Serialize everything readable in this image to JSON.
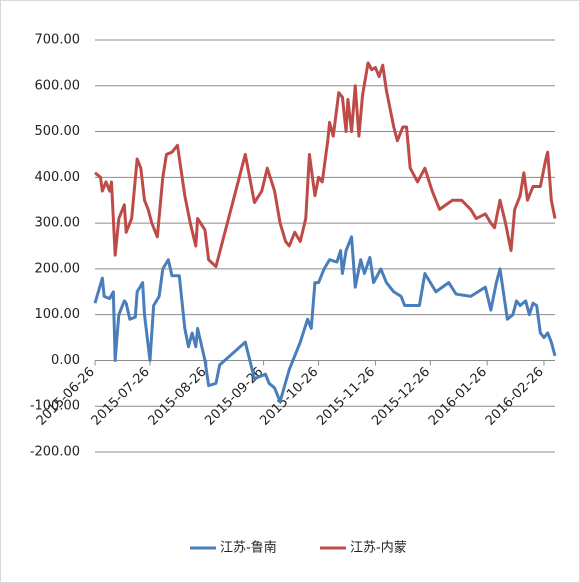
{
  "chart_data": {
    "type": "line",
    "xlim": [
      "2015-06-26",
      "2016-03-03"
    ],
    "xticks": [
      "2015-06-26",
      "2015-07-26",
      "2015-08-26",
      "2015-09-26",
      "2015-10-26",
      "2015-11-26",
      "2015-12-26",
      "2016-01-26",
      "2016-02-26"
    ],
    "ylim": [
      -200,
      700
    ],
    "yticks": [
      {
        "value": -200,
        "label": "-200.00"
      },
      {
        "value": -100,
        "label": "-100.00"
      },
      {
        "value": 0,
        "label": "0.00"
      },
      {
        "value": 100,
        "label": "100.00"
      },
      {
        "value": 200,
        "label": "200.00"
      },
      {
        "value": 300,
        "label": "300.00"
      },
      {
        "value": 400,
        "label": "400.00"
      },
      {
        "value": 500,
        "label": "500.00"
      },
      {
        "value": 600,
        "label": "600.00"
      },
      {
        "value": 700,
        "label": "700.00"
      }
    ],
    "grid": true,
    "legend": "bottom",
    "series": [
      {
        "name": "江苏-鲁南",
        "color": "#4a7ebb",
        "x": [
          "2015-06-26",
          "2015-06-30",
          "2015-07-01",
          "2015-07-04",
          "2015-07-06",
          "2015-07-07",
          "2015-07-09",
          "2015-07-12",
          "2015-07-13",
          "2015-07-15",
          "2015-07-18",
          "2015-07-19",
          "2015-07-22",
          "2015-07-23",
          "2015-07-26",
          "2015-07-28",
          "2015-07-31",
          "2015-08-02",
          "2015-08-05",
          "2015-08-07",
          "2015-08-11",
          "2015-08-14",
          "2015-08-16",
          "2015-08-18",
          "2015-08-20",
          "2015-08-21",
          "2015-08-25",
          "2015-08-27",
          "2015-08-31",
          "2015-09-02",
          "2015-09-16",
          "2015-09-21",
          "2015-09-27",
          "2015-09-29",
          "2015-10-02",
          "2015-10-05",
          "2015-10-10",
          "2015-10-16",
          "2015-10-20",
          "2015-10-22",
          "2015-10-24",
          "2015-10-26",
          "2015-10-29",
          "2015-11-01",
          "2015-11-05",
          "2015-11-07",
          "2015-11-08",
          "2015-11-10",
          "2015-11-13",
          "2015-11-15",
          "2015-11-18",
          "2015-11-20",
          "2015-11-23",
          "2015-11-25",
          "2015-11-29",
          "2015-12-02",
          "2015-12-06",
          "2015-12-10",
          "2015-12-12",
          "2015-12-20",
          "2015-12-23",
          "2015-12-29",
          "2016-01-05",
          "2016-01-09",
          "2016-01-17",
          "2016-01-25",
          "2016-01-28",
          "2016-01-31",
          "2016-02-02",
          "2016-02-06",
          "2016-02-09",
          "2016-02-11",
          "2016-02-13",
          "2016-02-16",
          "2016-02-18",
          "2016-02-20",
          "2016-02-22",
          "2016-02-24",
          "2016-02-26",
          "2016-02-28",
          "2016-03-01",
          "2016-03-03"
        ],
        "values": [
          125,
          180,
          140,
          135,
          150,
          0,
          100,
          130,
          125,
          90,
          95,
          150,
          170,
          100,
          0,
          120,
          140,
          200,
          220,
          185,
          185,
          70,
          30,
          60,
          30,
          70,
          0,
          -55,
          -50,
          -10,
          40,
          -40,
          -30,
          -50,
          -60,
          -90,
          -20,
          40,
          90,
          70,
          170,
          170,
          200,
          220,
          215,
          240,
          190,
          240,
          270,
          160,
          220,
          190,
          225,
          170,
          200,
          170,
          150,
          140,
          120,
          120,
          190,
          150,
          170,
          145,
          140,
          160,
          110,
          170,
          200,
          90,
          100,
          130,
          120,
          130,
          100,
          125,
          120,
          60,
          50,
          60,
          40,
          10
        ]
      },
      {
        "name": "江苏-内蒙",
        "color": "#be4b48",
        "x": [
          "2015-06-26",
          "2015-06-29",
          "2015-06-30",
          "2015-07-02",
          "2015-07-04",
          "2015-07-05",
          "2015-07-07",
          "2015-07-09",
          "2015-07-12",
          "2015-07-13",
          "2015-07-16",
          "2015-07-19",
          "2015-07-21",
          "2015-07-23",
          "2015-07-25",
          "2015-07-27",
          "2015-07-30",
          "2015-08-02",
          "2015-08-04",
          "2015-08-07",
          "2015-08-10",
          "2015-08-14",
          "2015-08-17",
          "2015-08-20",
          "2015-08-21",
          "2015-08-25",
          "2015-08-27",
          "2015-08-31",
          "2015-09-16",
          "2015-09-21",
          "2015-09-25",
          "2015-09-28",
          "2015-10-02",
          "2015-10-05",
          "2015-10-08",
          "2015-10-10",
          "2015-10-13",
          "2015-10-16",
          "2015-10-19",
          "2015-10-21",
          "2015-10-24",
          "2015-10-26",
          "2015-10-28",
          "2015-10-31",
          "2015-11-01",
          "2015-11-03",
          "2015-11-06",
          "2015-11-08",
          "2015-11-10",
          "2015-11-11",
          "2015-11-13",
          "2015-11-15",
          "2015-11-17",
          "2015-11-19",
          "2015-11-22",
          "2015-11-24",
          "2015-11-26",
          "2015-11-28",
          "2015-11-30",
          "2015-12-02",
          "2015-12-06",
          "2015-12-08",
          "2015-12-11",
          "2015-12-13",
          "2015-12-15",
          "2015-12-19",
          "2015-12-23",
          "2015-12-27",
          "2015-12-31",
          "2016-01-07",
          "2016-01-12",
          "2016-01-17",
          "2016-01-20",
          "2016-01-25",
          "2016-01-28",
          "2016-01-30",
          "2016-02-02",
          "2016-02-05",
          "2016-02-08",
          "2016-02-10",
          "2016-02-13",
          "2016-02-15",
          "2016-02-17",
          "2016-02-20",
          "2016-02-24",
          "2016-02-27",
          "2016-02-28",
          "2016-03-01",
          "2016-03-03"
        ],
        "values": [
          410,
          400,
          370,
          390,
          370,
          390,
          230,
          310,
          340,
          280,
          310,
          440,
          420,
          350,
          330,
          300,
          270,
          400,
          450,
          455,
          470,
          360,
          300,
          250,
          310,
          285,
          220,
          205,
          450,
          345,
          370,
          420,
          370,
          300,
          260,
          250,
          280,
          260,
          310,
          450,
          360,
          400,
          390,
          480,
          520,
          490,
          585,
          575,
          500,
          570,
          500,
          600,
          490,
          580,
          650,
          635,
          640,
          620,
          645,
          590,
          510,
          480,
          510,
          510,
          420,
          390,
          420,
          370,
          330,
          350,
          350,
          330,
          310,
          320,
          300,
          290,
          350,
          300,
          240,
          330,
          360,
          410,
          350,
          380,
          380,
          440,
          455,
          350,
          310
        ]
      }
    ]
  }
}
